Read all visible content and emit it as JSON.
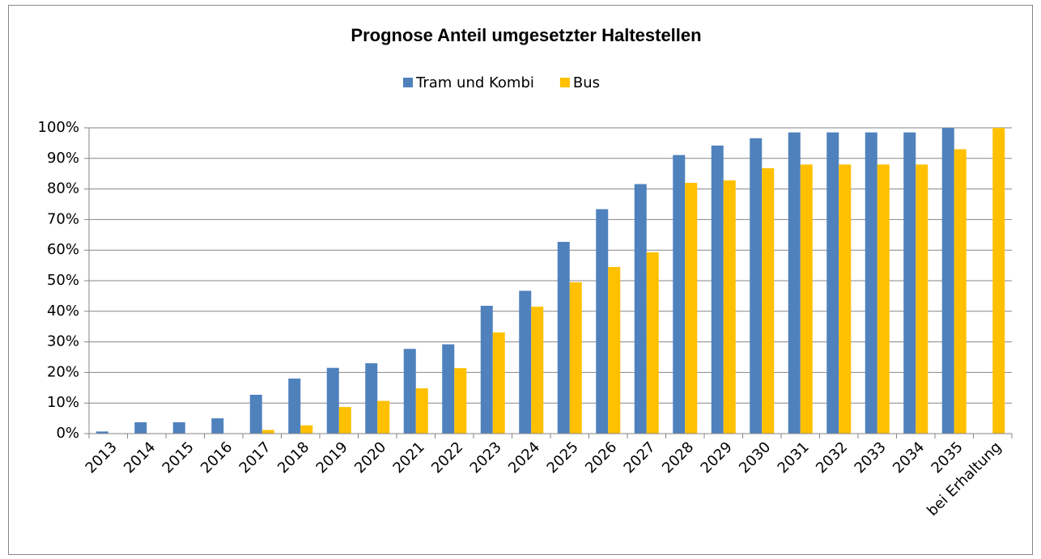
{
  "chart_data": {
    "type": "bar",
    "title": "Prognose Anteil umgesetzter Haltestellen",
    "categories": [
      "2013",
      "2014",
      "2015",
      "2016",
      "2017",
      "2018",
      "2019",
      "2020",
      "2021",
      "2022",
      "2023",
      "2024",
      "2025",
      "2026",
      "2027",
      "2028",
      "2029",
      "2030",
      "2031",
      "2032",
      "2033",
      "2034",
      "2035",
      "bei Erhaltung"
    ],
    "series": [
      {
        "name": "Tram und Kombi",
        "color": "#4f81bd",
        "values": [
          0.7,
          3.7,
          3.7,
          5.0,
          12.7,
          18,
          21.5,
          23,
          27.7,
          29.2,
          41.8,
          46.7,
          62.7,
          73.4,
          81.6,
          91.1,
          94.2,
          96.6,
          98.5,
          98.5,
          98.5,
          98.5,
          100,
          null
        ]
      },
      {
        "name": "Bus",
        "color": "#ffc000",
        "values": [
          0,
          0,
          0,
          0,
          1.2,
          2.7,
          8.7,
          10.7,
          14.8,
          21.4,
          33.1,
          41.5,
          49.5,
          54.5,
          59.3,
          82,
          82.8,
          86.8,
          88,
          88,
          88,
          88,
          93,
          100
        ]
      }
    ],
    "ylim": [
      0,
      100
    ],
    "yticks": [
      {
        "value": 0,
        "label": "0%"
      },
      {
        "value": 10,
        "label": "10%"
      },
      {
        "value": 20,
        "label": "20%"
      },
      {
        "value": 30,
        "label": "30%"
      },
      {
        "value": 40,
        "label": "40%"
      },
      {
        "value": 50,
        "label": "50%"
      },
      {
        "value": 60,
        "label": "60%"
      },
      {
        "value": 70,
        "label": "70%"
      },
      {
        "value": 80,
        "label": "80%"
      },
      {
        "value": 90,
        "label": "90%"
      },
      {
        "value": 100,
        "label": "100%"
      }
    ],
    "grid": true,
    "legend": "top"
  }
}
